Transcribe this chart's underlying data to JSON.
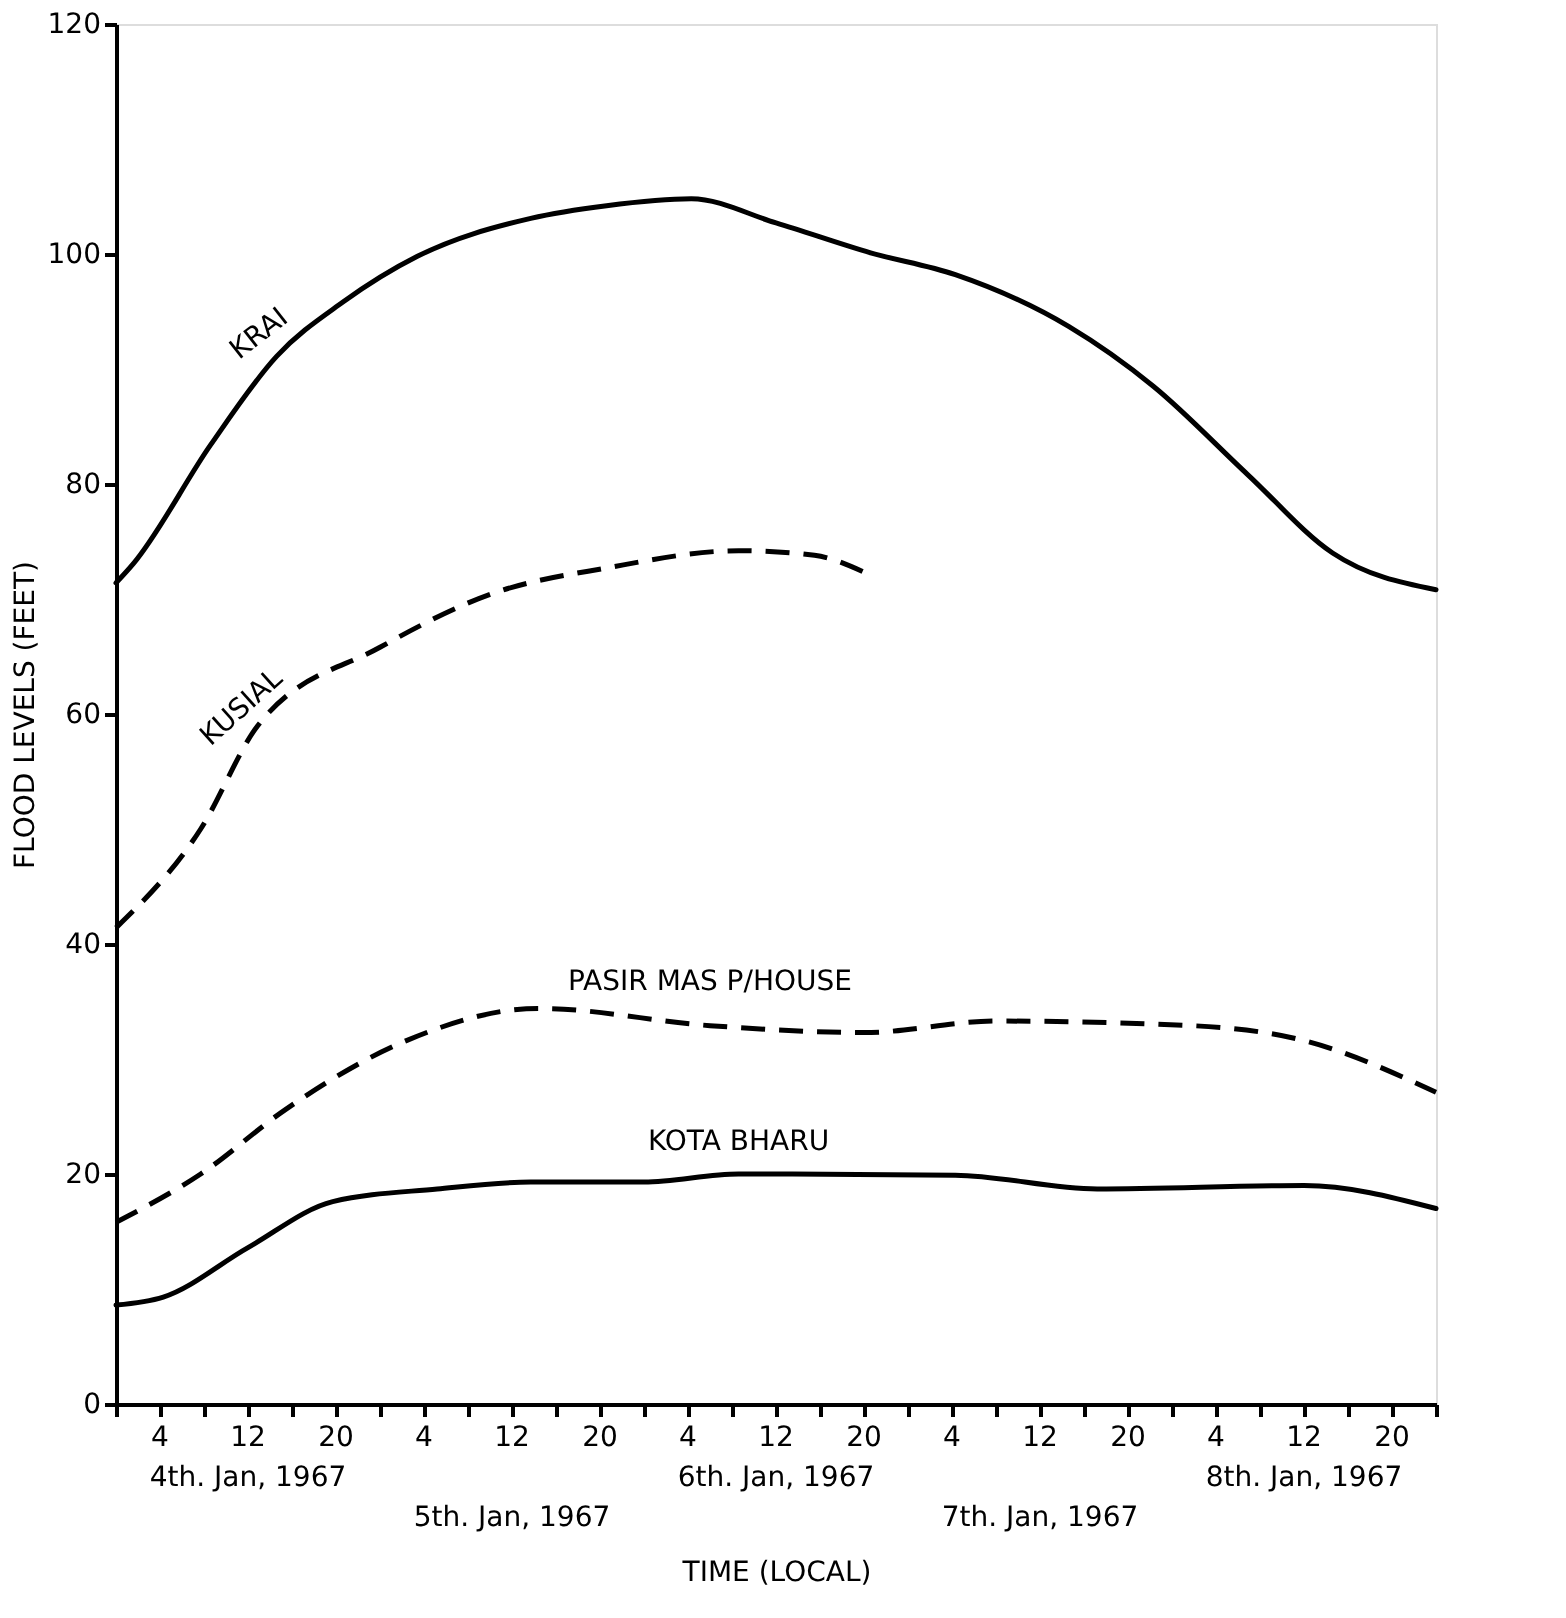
{
  "chart_data": {
    "type": "line",
    "xlabel": "TIME (LOCAL)",
    "ylabel": "FLOOD LEVELS (FEET)",
    "xlim": [
      "1967-01-04T00:00",
      "1967-01-09T00:00"
    ],
    "ylim": [
      0,
      120
    ],
    "yticks": [
      0,
      20,
      40,
      60,
      80,
      100,
      120
    ],
    "xticks": [
      {
        "value": "1967-01-04T00:00",
        "label": null
      },
      {
        "value": "1967-01-04T04:00",
        "label": "4"
      },
      {
        "value": "1967-01-04T08:00",
        "label": null
      },
      {
        "value": "1967-01-04T12:00",
        "label": "12"
      },
      {
        "value": "1967-01-04T16:00",
        "label": null
      },
      {
        "value": "1967-01-04T20:00",
        "label": "20"
      },
      {
        "value": "1967-01-05T00:00",
        "label": null
      },
      {
        "value": "1967-01-05T04:00",
        "label": "4"
      },
      {
        "value": "1967-01-05T08:00",
        "label": null
      },
      {
        "value": "1967-01-05T12:00",
        "label": "12"
      },
      {
        "value": "1967-01-05T16:00",
        "label": null
      },
      {
        "value": "1967-01-05T20:00",
        "label": "20"
      },
      {
        "value": "1967-01-06T00:00",
        "label": null
      },
      {
        "value": "1967-01-06T04:00",
        "label": "4"
      },
      {
        "value": "1967-01-06T08:00",
        "label": null
      },
      {
        "value": "1967-01-06T12:00",
        "label": "12"
      },
      {
        "value": "1967-01-06T16:00",
        "label": null
      },
      {
        "value": "1967-01-06T20:00",
        "label": "20"
      },
      {
        "value": "1967-01-07T00:00",
        "label": null
      },
      {
        "value": "1967-01-07T04:00",
        "label": "4"
      },
      {
        "value": "1967-01-07T08:00",
        "label": null
      },
      {
        "value": "1967-01-07T12:00",
        "label": "12"
      },
      {
        "value": "1967-01-07T16:00",
        "label": null
      },
      {
        "value": "1967-01-07T20:00",
        "label": "20"
      },
      {
        "value": "1967-01-08T00:00",
        "label": null
      },
      {
        "value": "1967-01-08T04:00",
        "label": "4"
      },
      {
        "value": "1967-01-08T08:00",
        "label": null
      },
      {
        "value": "1967-01-08T12:00",
        "label": "12"
      },
      {
        "value": "1967-01-08T16:00",
        "label": null
      },
      {
        "value": "1967-01-08T20:00",
        "label": "20"
      },
      {
        "value": "1967-01-09T00:00",
        "label": null
      }
    ],
    "grid": false,
    "legend": false,
    "marker": "none",
    "annotations": [
      "4th. Jan, 1967",
      "5th. Jan, 1967",
      "6th. Jan, 1967",
      "7th. Jan, 1967",
      "8th. Jan, 1967"
    ],
    "series": [
      {
        "name": "KRAI",
        "color": "#000000",
        "line_style": "solid",
        "x": [
          "1967-01-04T00:00",
          "1967-01-04T01:36",
          "1967-01-04T08:36",
          "1967-01-04T14:36",
          "1967-01-04T20:36",
          "1967-01-05T03:24",
          "1967-01-05T13:42",
          "1967-01-05T20:36",
          "1967-01-06T04:18",
          "1967-01-06T12:00",
          "1967-01-06T20:36",
          "1967-01-07T04:18",
          "1967-01-07T14:36",
          "1967-01-07T22:18",
          "1967-01-08T06:54",
          "1967-01-08T14:36",
          "1967-01-09T00:00"
        ],
        "values": [
          71.4,
          73.1,
          83.4,
          91.1,
          95.8,
          99.8,
          103.1,
          104.2,
          104.8,
          102.7,
          100.1,
          98.2,
          93.7,
          88.5,
          80.8,
          74,
          70.8
        ]
      },
      {
        "name": "KUSIAL",
        "color": "#000000",
        "line_style": "dashed",
        "x": [
          "1967-01-04T00:00",
          "1967-01-04T07:42",
          "1967-01-04T12:54",
          "1967-01-05T00:00",
          "1967-01-05T10:18",
          "1967-01-05T20:36",
          "1967-01-06T08:36",
          "1967-01-06T15:30",
          "1967-01-06T20:06"
        ],
        "values": [
          41.4,
          50,
          59,
          65.8,
          70.5,
          72.7,
          74.2,
          73.8,
          72.3
        ]
      },
      {
        "name": "PASIR MAS P/HOUSE",
        "color": "#000000",
        "line_style": "dashed",
        "x": [
          "1967-01-04T00:00",
          "1967-01-04T07:42",
          "1967-01-04T15:24",
          "1967-01-05T02:24",
          "1967-01-05T14:24",
          "1967-01-06T06:00",
          "1967-01-06T20:00",
          "1967-01-07T08:00",
          "1967-01-08T01:48",
          "1967-01-08T12:00",
          "1967-01-09T00:00"
        ],
        "values": [
          15.8,
          20,
          25.6,
          31.6,
          34.4,
          32.9,
          32.3,
          33.3,
          32.9,
          31.6,
          27.1
        ]
      },
      {
        "name": "KOTA BHARU",
        "color": "#000000",
        "line_style": "solid",
        "x": [
          "1967-01-04T00:00",
          "1967-01-04T04:18",
          "1967-01-04T12:00",
          "1967-01-04T19:42",
          "1967-01-05T05:12",
          "1967-01-05T13:42",
          "1967-01-06T00:00",
          "1967-01-06T08:36",
          "1967-01-07T04:18",
          "1967-01-07T17:12",
          "1967-01-08T12:00",
          "1967-01-09T00:00"
        ],
        "values": [
          8.6,
          9.3,
          13.6,
          17.6,
          18.7,
          19.3,
          19.3,
          20,
          19.9,
          18.7,
          19,
          17
        ]
      }
    ]
  }
}
